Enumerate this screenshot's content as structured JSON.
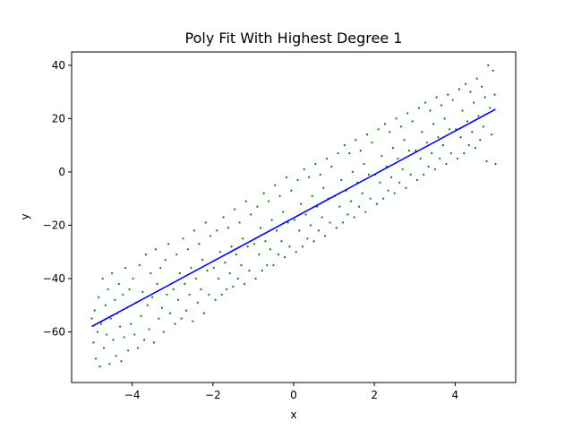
{
  "chart_data": {
    "type": "scatter",
    "title": "Poly Fit With Highest Degree  1",
    "xlabel": "x",
    "ylabel": "y",
    "xlim": [
      -5.5,
      5.5
    ],
    "ylim": [
      -79,
      45
    ],
    "xticks": [
      -4,
      -2,
      0,
      2,
      4
    ],
    "yticks": [
      -60,
      -40,
      -20,
      0,
      20,
      40
    ],
    "xtick_labels": [
      "−4",
      "−2",
      "0",
      "2",
      "4"
    ],
    "ytick_labels": [
      "−60",
      "−40",
      "−20",
      "0",
      "20",
      "40"
    ],
    "grid": false,
    "series": [
      {
        "kind": "scatter",
        "color": "#008000",
        "points": [
          [
            -5.0,
            -55
          ],
          [
            -4.96,
            -64
          ],
          [
            -4.93,
            -52
          ],
          [
            -4.9,
            -70
          ],
          [
            -4.86,
            -60
          ],
          [
            -4.83,
            -47
          ],
          [
            -4.8,
            -73
          ],
          [
            -4.77,
            -57
          ],
          [
            -4.73,
            -40
          ],
          [
            -4.7,
            -66
          ],
          [
            -4.66,
            -50
          ],
          [
            -4.63,
            -61
          ],
          [
            -4.6,
            -44
          ],
          [
            -4.56,
            -72
          ],
          [
            -4.53,
            -55
          ],
          [
            -4.5,
            -38
          ],
          [
            -4.47,
            -63
          ],
          [
            -4.43,
            -48
          ],
          [
            -4.4,
            -69
          ],
          [
            -4.37,
            -53
          ],
          [
            -4.33,
            -42
          ],
          [
            -4.3,
            -58
          ],
          [
            -4.27,
            -71
          ],
          [
            -4.23,
            -46
          ],
          [
            -4.2,
            -62
          ],
          [
            -4.17,
            -36
          ],
          [
            -4.13,
            -51
          ],
          [
            -4.1,
            -67
          ],
          [
            -4.07,
            -44
          ],
          [
            -4.03,
            -57
          ],
          [
            -3.98,
            -40
          ],
          [
            -3.94,
            -61
          ],
          [
            -3.9,
            -49
          ],
          [
            -3.86,
            -66
          ],
          [
            -3.82,
            -35
          ],
          [
            -3.78,
            -54
          ],
          [
            -3.74,
            -45
          ],
          [
            -3.7,
            -63
          ],
          [
            -3.66,
            -31
          ],
          [
            -3.62,
            -50
          ],
          [
            -3.58,
            -59
          ],
          [
            -3.54,
            -38
          ],
          [
            -3.5,
            -47
          ],
          [
            -3.46,
            -64
          ],
          [
            -3.42,
            -29
          ],
          [
            -3.38,
            -42
          ],
          [
            -3.34,
            -55
          ],
          [
            -3.3,
            -36
          ],
          [
            -3.26,
            -51
          ],
          [
            -3.22,
            -60
          ],
          [
            -3.18,
            -33
          ],
          [
            -3.14,
            -46
          ],
          [
            -3.1,
            -27
          ],
          [
            -3.06,
            -53
          ],
          [
            -2.98,
            -44
          ],
          [
            -2.94,
            -57
          ],
          [
            -2.9,
            -31
          ],
          [
            -2.86,
            -48
          ],
          [
            -2.82,
            -38
          ],
          [
            -2.78,
            -55
          ],
          [
            -2.74,
            -25
          ],
          [
            -2.7,
            -42
          ],
          [
            -2.66,
            -52
          ],
          [
            -2.62,
            -29
          ],
          [
            -2.58,
            -46
          ],
          [
            -2.54,
            -36
          ],
          [
            -2.5,
            -56
          ],
          [
            -2.46,
            -22
          ],
          [
            -2.42,
            -40
          ],
          [
            -2.38,
            -49
          ],
          [
            -2.34,
            -27
          ],
          [
            -2.3,
            -44
          ],
          [
            -2.26,
            -33
          ],
          [
            -2.22,
            -53
          ],
          [
            -2.18,
            -19
          ],
          [
            -2.14,
            -37
          ],
          [
            -2.1,
            -46
          ],
          [
            -2.06,
            -24
          ],
          [
            -1.98,
            -36
          ],
          [
            -1.94,
            -48
          ],
          [
            -1.9,
            -22
          ],
          [
            -1.86,
            -40
          ],
          [
            -1.82,
            -30
          ],
          [
            -1.78,
            -46
          ],
          [
            -1.74,
            -17
          ],
          [
            -1.7,
            -34
          ],
          [
            -1.66,
            -44
          ],
          [
            -1.62,
            -21
          ],
          [
            -1.58,
            -38
          ],
          [
            -1.54,
            -28
          ],
          [
            -1.5,
            -43
          ],
          [
            -1.46,
            -14
          ],
          [
            -1.42,
            -31
          ],
          [
            -1.38,
            -40
          ],
          [
            -1.34,
            -19
          ],
          [
            -1.3,
            -35
          ],
          [
            -1.26,
            -25
          ],
          [
            -1.22,
            -42
          ],
          [
            -1.18,
            -11
          ],
          [
            -1.14,
            -28
          ],
          [
            -1.1,
            -37
          ],
          [
            -1.06,
            -16
          ],
          [
            -0.98,
            -27
          ],
          [
            -0.94,
            -40
          ],
          [
            -0.9,
            -13
          ],
          [
            -0.86,
            -31
          ],
          [
            -0.82,
            -21
          ],
          [
            -0.78,
            -37
          ],
          [
            -0.74,
            -8
          ],
          [
            -0.7,
            -26
          ],
          [
            -0.66,
            -35
          ],
          [
            -0.62,
            -11
          ],
          [
            -0.58,
            -29
          ],
          [
            -0.54,
            -18
          ],
          [
            -0.5,
            -35
          ],
          [
            -0.46,
            -5
          ],
          [
            -0.42,
            -22
          ],
          [
            -0.38,
            -31
          ],
          [
            -0.34,
            -9
          ],
          [
            -0.3,
            -26
          ],
          [
            -0.26,
            -15
          ],
          [
            -0.22,
            -32
          ],
          [
            -0.18,
            -2
          ],
          [
            -0.14,
            -19
          ],
          [
            -0.1,
            -28
          ],
          [
            -0.06,
            -7
          ],
          [
            0.02,
            -18
          ],
          [
            0.06,
            -30
          ],
          [
            0.1,
            -3
          ],
          [
            0.14,
            -22
          ],
          [
            0.18,
            -12
          ],
          [
            0.22,
            -28
          ],
          [
            0.26,
            1
          ],
          [
            0.3,
            -16
          ],
          [
            0.34,
            -25
          ],
          [
            0.38,
            -2
          ],
          [
            0.42,
            -20
          ],
          [
            0.46,
            -9
          ],
          [
            0.5,
            -26
          ],
          [
            0.54,
            3
          ],
          [
            0.58,
            -13
          ],
          [
            0.62,
            -22
          ],
          [
            0.66,
            -1
          ],
          [
            0.7,
            -17
          ],
          [
            0.74,
            -6
          ],
          [
            0.78,
            -24
          ],
          [
            0.82,
            5
          ],
          [
            0.86,
            -10
          ],
          [
            0.9,
            -19
          ],
          [
            0.94,
            2
          ],
          [
            1.02,
            -9
          ],
          [
            1.06,
            -21
          ],
          [
            1.1,
            7
          ],
          [
            1.14,
            -13
          ],
          [
            1.18,
            -3
          ],
          [
            1.22,
            -19
          ],
          [
            1.26,
            10
          ],
          [
            1.3,
            -7
          ],
          [
            1.34,
            -16
          ],
          [
            1.38,
            7
          ],
          [
            1.42,
            -11
          ],
          [
            1.46,
            0
          ],
          [
            1.5,
            -17
          ],
          [
            1.54,
            12
          ],
          [
            1.58,
            -4
          ],
          [
            1.62,
            -13
          ],
          [
            1.66,
            8
          ],
          [
            1.7,
            -8
          ],
          [
            1.74,
            3
          ],
          [
            1.78,
            -15
          ],
          [
            1.82,
            14
          ],
          [
            1.86,
            -1
          ],
          [
            1.9,
            -10
          ],
          [
            1.94,
            11
          ],
          [
            2.02,
            -1
          ],
          [
            2.06,
            -12
          ],
          [
            2.1,
            16
          ],
          [
            2.14,
            -4
          ],
          [
            2.18,
            6
          ],
          [
            2.22,
            -10
          ],
          [
            2.26,
            18
          ],
          [
            2.3,
            2
          ],
          [
            2.34,
            -7
          ],
          [
            2.38,
            15
          ],
          [
            2.42,
            -2
          ],
          [
            2.46,
            9
          ],
          [
            2.5,
            -8
          ],
          [
            2.54,
            20
          ],
          [
            2.58,
            5
          ],
          [
            2.62,
            -4
          ],
          [
            2.66,
            17
          ],
          [
            2.7,
            1
          ],
          [
            2.74,
            12
          ],
          [
            2.78,
            -6
          ],
          [
            2.82,
            22
          ],
          [
            2.86,
            8
          ],
          [
            2.9,
            -1
          ],
          [
            2.94,
            19
          ],
          [
            3.02,
            8
          ],
          [
            3.06,
            -3
          ],
          [
            3.1,
            24
          ],
          [
            3.14,
            5
          ],
          [
            3.18,
            15
          ],
          [
            3.22,
            -1
          ],
          [
            3.26,
            26
          ],
          [
            3.3,
            11
          ],
          [
            3.34,
            2
          ],
          [
            3.38,
            23
          ],
          [
            3.42,
            7
          ],
          [
            3.46,
            18
          ],
          [
            3.5,
            1
          ],
          [
            3.54,
            28
          ],
          [
            3.58,
            13
          ],
          [
            3.62,
            5
          ],
          [
            3.66,
            25
          ],
          [
            3.7,
            10
          ],
          [
            3.74,
            20
          ],
          [
            3.78,
            3
          ],
          [
            3.82,
            29
          ],
          [
            3.86,
            16
          ],
          [
            3.9,
            7
          ],
          [
            3.94,
            27
          ],
          [
            4.02,
            16
          ],
          [
            4.06,
            5
          ],
          [
            4.1,
            31
          ],
          [
            4.14,
            13
          ],
          [
            4.18,
            23
          ],
          [
            4.22,
            7
          ],
          [
            4.26,
            33
          ],
          [
            4.3,
            19
          ],
          [
            4.34,
            10
          ],
          [
            4.38,
            30
          ],
          [
            4.42,
            15
          ],
          [
            4.46,
            26
          ],
          [
            4.5,
            9
          ],
          [
            4.54,
            35
          ],
          [
            4.58,
            21
          ],
          [
            4.62,
            12
          ],
          [
            4.66,
            32
          ],
          [
            4.7,
            17
          ],
          [
            4.74,
            28
          ],
          [
            4.78,
            4
          ],
          [
            4.82,
            40
          ],
          [
            4.86,
            24
          ],
          [
            4.9,
            14
          ],
          [
            4.94,
            38
          ],
          [
            4.98,
            29
          ],
          [
            5.0,
            3
          ]
        ]
      },
      {
        "kind": "line",
        "color": "#0000ff",
        "points": [
          [
            -5.0,
            -58
          ],
          [
            5.0,
            23.5
          ]
        ]
      }
    ]
  }
}
